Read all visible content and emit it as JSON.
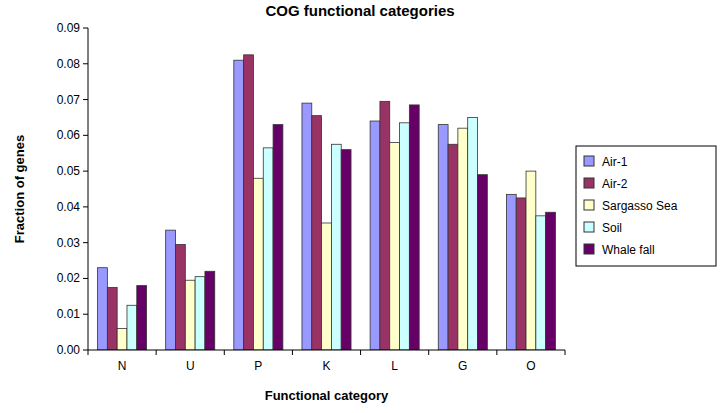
{
  "chart_data": {
    "type": "bar",
    "title": "COG functional categories",
    "x_label": "Functional category",
    "y_label": "Fraction of genes",
    "categories": [
      "N",
      "U",
      "P",
      "K",
      "L",
      "G",
      "O"
    ],
    "series": [
      {
        "name": "Air-1",
        "color": "#9999ff",
        "values": [
          0.023,
          0.0335,
          0.081,
          0.069,
          0.064,
          0.063,
          0.0435
        ]
      },
      {
        "name": "Air-2",
        "color": "#993366",
        "values": [
          0.0175,
          0.0295,
          0.0825,
          0.0655,
          0.0695,
          0.0575,
          0.0425
        ]
      },
      {
        "name": "Sargasso Sea",
        "color": "#ffffcc",
        "values": [
          0.006,
          0.0195,
          0.048,
          0.0355,
          0.058,
          0.062,
          0.05
        ]
      },
      {
        "name": "Soil",
        "color": "#ccffff",
        "values": [
          0.0125,
          0.0205,
          0.0565,
          0.0575,
          0.0635,
          0.065,
          0.0375
        ]
      },
      {
        "name": "Whale fall",
        "color": "#660066",
        "values": [
          0.018,
          0.022,
          0.063,
          0.056,
          0.0685,
          0.049,
          0.0385
        ]
      }
    ],
    "ylim": [
      0,
      0.09
    ],
    "yticks": [
      {
        "value": 0,
        "label": "0.00"
      },
      0.01,
      0.02,
      0.03,
      0.04,
      0.05,
      0.06,
      0.07,
      0.08,
      0.09
    ],
    "grid": false,
    "legend": "right"
  }
}
